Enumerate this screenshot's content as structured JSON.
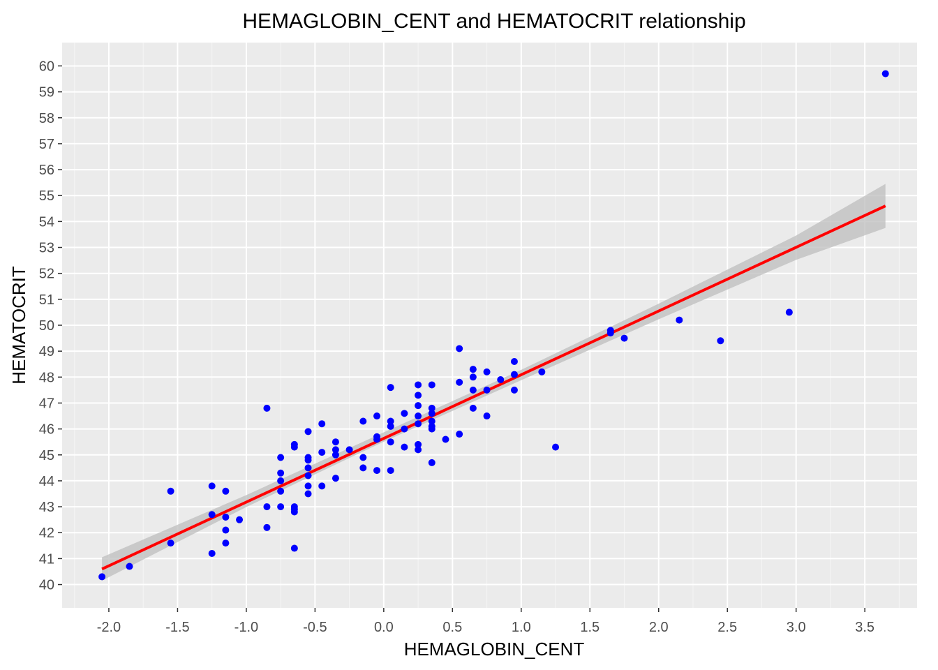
{
  "chart_data": {
    "type": "scatter",
    "title": "HEMAGLOBIN_CENT and HEMATOCRIT relationship",
    "xlabel": "HEMAGLOBIN_CENT",
    "ylabel": "HEMATOCRIT",
    "xlim": [
      -2.34,
      3.88
    ],
    "ylim": [
      39.1,
      60.9
    ],
    "x_ticks": [
      "-2.0",
      "-1.5",
      "-1.0",
      "-0.5",
      "0.0",
      "0.5",
      "1.0",
      "1.5",
      "2.0",
      "2.5",
      "3.0",
      "3.5"
    ],
    "y_ticks": [
      "40",
      "41",
      "42",
      "43",
      "44",
      "45",
      "46",
      "47",
      "48",
      "49",
      "50",
      "51",
      "52",
      "53",
      "54",
      "55",
      "56",
      "57",
      "58",
      "59",
      "60"
    ],
    "grid": true,
    "legend": "none",
    "colors": {
      "panel": "#ebebeb",
      "grid_major": "#ffffff",
      "points": "#0000ff",
      "fit_line": "#ff0000",
      "ci_band": "#bdbdbd"
    },
    "points": [
      {
        "x": -2.05,
        "y": 40.3
      },
      {
        "x": -1.85,
        "y": 40.7
      },
      {
        "x": -1.55,
        "y": 43.6
      },
      {
        "x": -1.55,
        "y": 41.6
      },
      {
        "x": -1.25,
        "y": 43.8
      },
      {
        "x": -1.25,
        "y": 42.7
      },
      {
        "x": -1.25,
        "y": 41.2
      },
      {
        "x": -1.15,
        "y": 43.6
      },
      {
        "x": -1.15,
        "y": 42.6
      },
      {
        "x": -1.15,
        "y": 42.1
      },
      {
        "x": -1.15,
        "y": 41.6
      },
      {
        "x": -1.05,
        "y": 42.5
      },
      {
        "x": -0.85,
        "y": 46.8
      },
      {
        "x": -0.85,
        "y": 43.0
      },
      {
        "x": -0.85,
        "y": 42.2
      },
      {
        "x": -0.75,
        "y": 44.9
      },
      {
        "x": -0.75,
        "y": 44.3
      },
      {
        "x": -0.75,
        "y": 44.0
      },
      {
        "x": -0.75,
        "y": 43.6
      },
      {
        "x": -0.75,
        "y": 43.0
      },
      {
        "x": -0.65,
        "y": 45.4
      },
      {
        "x": -0.65,
        "y": 45.3
      },
      {
        "x": -0.65,
        "y": 43.0
      },
      {
        "x": -0.65,
        "y": 42.9
      },
      {
        "x": -0.65,
        "y": 42.8
      },
      {
        "x": -0.65,
        "y": 41.4
      },
      {
        "x": -0.55,
        "y": 45.9
      },
      {
        "x": -0.55,
        "y": 44.9
      },
      {
        "x": -0.55,
        "y": 44.8
      },
      {
        "x": -0.55,
        "y": 44.5
      },
      {
        "x": -0.55,
        "y": 44.2
      },
      {
        "x": -0.55,
        "y": 43.8
      },
      {
        "x": -0.55,
        "y": 43.5
      },
      {
        "x": -0.45,
        "y": 46.2
      },
      {
        "x": -0.45,
        "y": 45.1
      },
      {
        "x": -0.45,
        "y": 43.8
      },
      {
        "x": -0.35,
        "y": 45.5
      },
      {
        "x": -0.35,
        "y": 45.2
      },
      {
        "x": -0.35,
        "y": 45.0
      },
      {
        "x": -0.35,
        "y": 44.1
      },
      {
        "x": -0.25,
        "y": 45.2
      },
      {
        "x": -0.15,
        "y": 46.3
      },
      {
        "x": -0.15,
        "y": 44.9
      },
      {
        "x": -0.15,
        "y": 44.5
      },
      {
        "x": -0.05,
        "y": 46.5
      },
      {
        "x": -0.05,
        "y": 45.7
      },
      {
        "x": -0.05,
        "y": 45.6
      },
      {
        "x": -0.05,
        "y": 44.4
      },
      {
        "x": 0.05,
        "y": 47.6
      },
      {
        "x": 0.05,
        "y": 46.3
      },
      {
        "x": 0.05,
        "y": 46.1
      },
      {
        "x": 0.05,
        "y": 45.5
      },
      {
        "x": 0.05,
        "y": 44.4
      },
      {
        "x": 0.15,
        "y": 46.6
      },
      {
        "x": 0.15,
        "y": 46.0
      },
      {
        "x": 0.15,
        "y": 45.3
      },
      {
        "x": 0.25,
        "y": 47.7
      },
      {
        "x": 0.25,
        "y": 47.3
      },
      {
        "x": 0.25,
        "y": 46.9
      },
      {
        "x": 0.25,
        "y": 46.5
      },
      {
        "x": 0.25,
        "y": 46.2
      },
      {
        "x": 0.25,
        "y": 45.4
      },
      {
        "x": 0.25,
        "y": 45.2
      },
      {
        "x": 0.35,
        "y": 47.7
      },
      {
        "x": 0.35,
        "y": 46.8
      },
      {
        "x": 0.35,
        "y": 46.6
      },
      {
        "x": 0.35,
        "y": 46.3
      },
      {
        "x": 0.35,
        "y": 46.1
      },
      {
        "x": 0.35,
        "y": 46.0
      },
      {
        "x": 0.35,
        "y": 44.7
      },
      {
        "x": 0.45,
        "y": 45.6
      },
      {
        "x": 0.55,
        "y": 49.1
      },
      {
        "x": 0.55,
        "y": 47.8
      },
      {
        "x": 0.55,
        "y": 45.8
      },
      {
        "x": 0.65,
        "y": 48.3
      },
      {
        "x": 0.65,
        "y": 48.0
      },
      {
        "x": 0.65,
        "y": 47.5
      },
      {
        "x": 0.65,
        "y": 46.8
      },
      {
        "x": 0.75,
        "y": 48.2
      },
      {
        "x": 0.75,
        "y": 47.5
      },
      {
        "x": 0.75,
        "y": 46.5
      },
      {
        "x": 0.85,
        "y": 47.9
      },
      {
        "x": 0.95,
        "y": 48.6
      },
      {
        "x": 0.95,
        "y": 48.1
      },
      {
        "x": 0.95,
        "y": 47.5
      },
      {
        "x": 1.15,
        "y": 48.2
      },
      {
        "x": 1.25,
        "y": 45.3
      },
      {
        "x": 1.65,
        "y": 49.8
      },
      {
        "x": 1.65,
        "y": 49.7
      },
      {
        "x": 1.75,
        "y": 49.5
      },
      {
        "x": 2.15,
        "y": 50.2
      },
      {
        "x": 2.45,
        "y": 49.4
      },
      {
        "x": 2.95,
        "y": 50.5
      },
      {
        "x": 3.65,
        "y": 59.7
      }
    ],
    "fit_line": {
      "x": [
        -2.05,
        3.65
      ],
      "y": [
        40.6,
        54.6
      ]
    },
    "confidence_band": {
      "x": [
        -2.05,
        -1.0,
        0.0,
        1.0,
        2.0,
        3.0,
        3.65
      ],
      "lower": [
        40.15,
        42.99,
        45.51,
        47.88,
        50.23,
        52.52,
        53.75
      ],
      "upper": [
        41.05,
        43.45,
        45.87,
        48.28,
        50.83,
        53.46,
        55.45
      ]
    }
  }
}
